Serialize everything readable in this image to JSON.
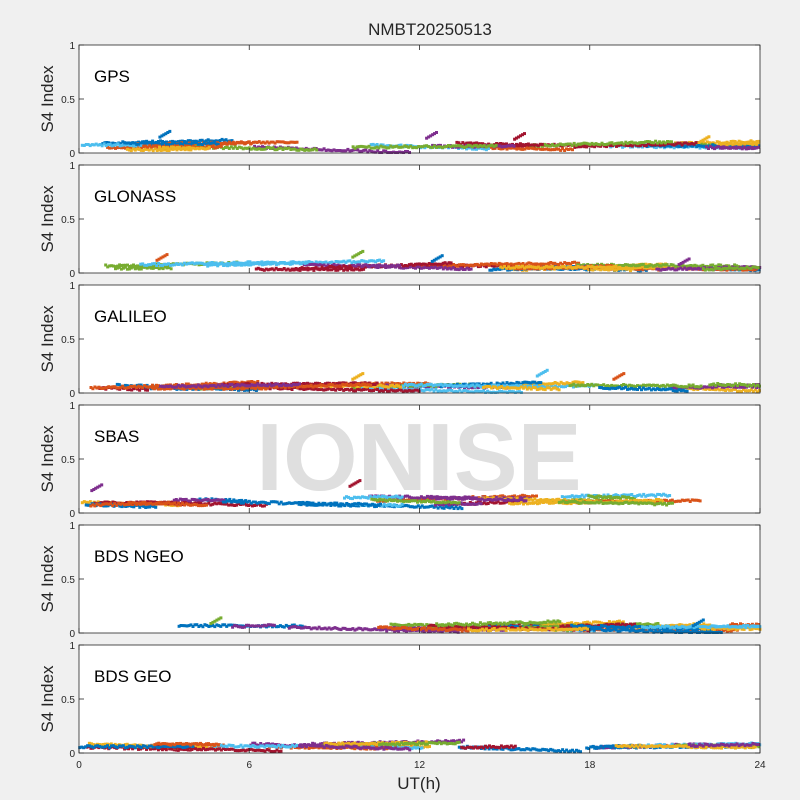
{
  "figure": {
    "title": "NMBT20250513",
    "watermark": "IONISE",
    "xlabel": "UT(h)",
    "colors": {
      "figure_bg": "#f0f0f0",
      "axes_bg": "#ffffff",
      "watermark": "#d9d9d9",
      "series_palette": [
        "#0072BD",
        "#D95319",
        "#EDB120",
        "#7E2F8E",
        "#77AC30",
        "#4DBEEE",
        "#A2142F"
      ]
    }
  },
  "chart_data": [
    {
      "type": "scatter",
      "constellation": "GPS",
      "ylabel": "S4 Index",
      "xlim": [
        0,
        24
      ],
      "ylim": [
        0,
        1
      ],
      "xticks": [
        0,
        6,
        12,
        18,
        24
      ],
      "yticks": [
        0,
        0.5,
        1
      ],
      "ytick_labels": [
        "0",
        "0.5",
        "1"
      ],
      "show_xtick_labels": false,
      "s4_typical_range": [
        0.03,
        0.12
      ],
      "peaks": [
        {
          "x": 3.2,
          "y": 0.2
        },
        {
          "x": 12.6,
          "y": 0.19
        },
        {
          "x": 15.7,
          "y": 0.18
        },
        {
          "x": 22.2,
          "y": 0.15
        }
      ]
    },
    {
      "type": "scatter",
      "constellation": "GLONASS",
      "ylabel": "S4 Index",
      "xlim": [
        0,
        24
      ],
      "ylim": [
        0,
        1
      ],
      "xticks": [
        0,
        6,
        12,
        18,
        24
      ],
      "yticks": [
        0,
        0.5,
        1
      ],
      "ytick_labels": [
        "0",
        "0.5",
        "1"
      ],
      "show_xtick_labels": false,
      "s4_typical_range": [
        0.03,
        0.1
      ],
      "peaks": [
        {
          "x": 3.1,
          "y": 0.17
        },
        {
          "x": 10.0,
          "y": 0.2
        },
        {
          "x": 12.8,
          "y": 0.16
        },
        {
          "x": 21.5,
          "y": 0.13
        }
      ]
    },
    {
      "type": "scatter",
      "constellation": "GALILEO",
      "ylabel": "S4 Index",
      "xlim": [
        0,
        24
      ],
      "ylim": [
        0,
        1
      ],
      "xticks": [
        0,
        6,
        12,
        18,
        24
      ],
      "yticks": [
        0,
        0.5,
        1
      ],
      "ytick_labels": [
        "0",
        "0.5",
        "1"
      ],
      "show_xtick_labels": false,
      "s4_typical_range": [
        0.04,
        0.1
      ],
      "peaks": [
        {
          "x": 10.0,
          "y": 0.18
        },
        {
          "x": 16.5,
          "y": 0.21
        },
        {
          "x": 19.2,
          "y": 0.18
        }
      ]
    },
    {
      "type": "scatter",
      "constellation": "SBAS",
      "ylabel": "S4 Index",
      "xlim": [
        0,
        24
      ],
      "ylim": [
        0,
        1
      ],
      "xticks": [
        0,
        6,
        12,
        18,
        24
      ],
      "yticks": [
        0,
        0.5,
        1
      ],
      "ytick_labels": [
        "0",
        "0.5",
        "1"
      ],
      "show_xtick_labels": false,
      "s4_typical_range": [
        0.07,
        0.2
      ],
      "peaks": [
        {
          "x": 0.8,
          "y": 0.26
        },
        {
          "x": 9.9,
          "y": 0.3
        }
      ]
    },
    {
      "type": "scatter",
      "constellation": "BDS NGEO",
      "ylabel": "S4 Index",
      "xlim": [
        0,
        24
      ],
      "ylim": [
        0,
        1
      ],
      "xticks": [
        0,
        6,
        12,
        18,
        24
      ],
      "yticks": [
        0,
        0.5,
        1
      ],
      "ytick_labels": [
        "0",
        "0.5",
        "1"
      ],
      "show_xtick_labels": false,
      "s4_typical_range": [
        0.03,
        0.1
      ],
      "peaks": [
        {
          "x": 5.0,
          "y": 0.14
        },
        {
          "x": 22.0,
          "y": 0.12
        }
      ]
    },
    {
      "type": "scatter",
      "constellation": "BDS GEO",
      "ylabel": "S4 Index",
      "xlim": [
        0,
        24
      ],
      "ylim": [
        0,
        1
      ],
      "xticks": [
        0,
        6,
        12,
        18,
        24
      ],
      "yticks": [
        0,
        0.5,
        1
      ],
      "ytick_labels": [
        "0",
        "0.5",
        "1"
      ],
      "xtick_labels": [
        "0",
        "6",
        "12",
        "18",
        "24"
      ],
      "show_xtick_labels": true,
      "s4_typical_range": [
        0.05,
        0.1
      ],
      "peaks": []
    }
  ]
}
